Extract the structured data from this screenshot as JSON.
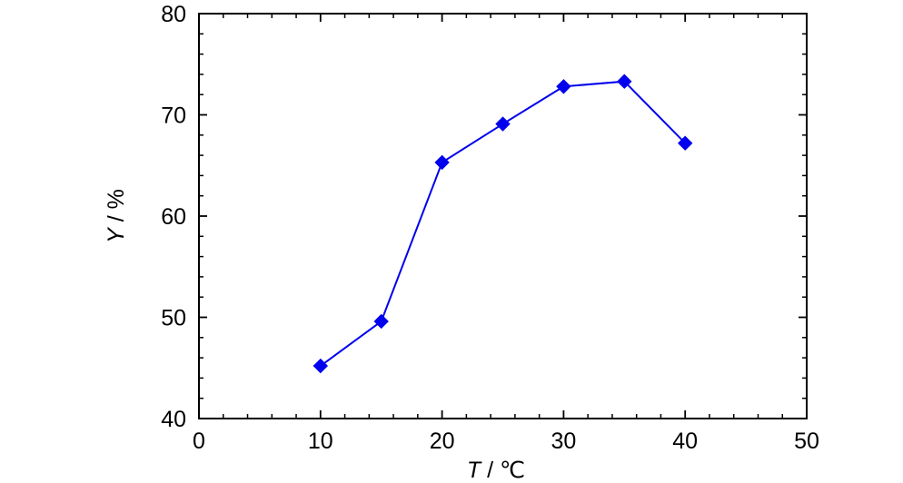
{
  "chart_data": {
    "type": "line",
    "title": "",
    "xlabel": {
      "symbol": "T",
      "sep": " / ",
      "unit": "℃"
    },
    "ylabel": {
      "symbol": "Y",
      "sep": " / ",
      "unit": "%"
    },
    "xlim": [
      0,
      50
    ],
    "ylim": [
      40,
      80
    ],
    "x_major_ticks": [
      0,
      10,
      20,
      30,
      40,
      50
    ],
    "y_major_ticks": [
      40,
      50,
      60,
      70,
      80
    ],
    "x_minor_step": 2,
    "y_minor_step": 2,
    "grid": false,
    "legend": "none",
    "series": [
      {
        "color": "#0000ee",
        "marker": "diamond",
        "x": [
          10,
          15,
          20,
          25,
          30,
          35,
          40
        ],
        "y": [
          45.2,
          49.6,
          65.3,
          69.1,
          72.8,
          73.3,
          67.2
        ]
      }
    ]
  }
}
